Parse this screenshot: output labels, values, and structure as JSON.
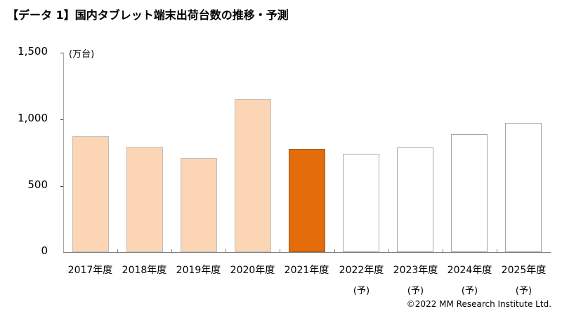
{
  "title": "【データ 1】国内タブレット端末出荷台数の推移・予測",
  "unit_label": "(万台)",
  "copyright": "©2022  MM Research Institute Ltd.",
  "colors": {
    "actual": "#FCD5B5",
    "actual_border": "#BFBFBF",
    "highlight": "#E46C0A",
    "forecast": "#FFFFFF",
    "forecast_border": "#A6A6A6"
  },
  "y_ticks": [
    "1,500",
    "1,000",
    "500",
    "0"
  ],
  "x_labels": [
    {
      "year": "2017年度",
      "sub": ""
    },
    {
      "year": "2018年度",
      "sub": ""
    },
    {
      "year": "2019年度",
      "sub": ""
    },
    {
      "year": "2020年度",
      "sub": ""
    },
    {
      "year": "2021年度",
      "sub": ""
    },
    {
      "year": "2022年度",
      "sub": "(予)"
    },
    {
      "year": "2023年度",
      "sub": "(予)"
    },
    {
      "year": "2024年度",
      "sub": "(予)"
    },
    {
      "year": "2025年度",
      "sub": "(予)"
    }
  ],
  "chart_data": {
    "type": "bar",
    "title": "【データ 1】国内タブレット端末出荷台数の推移・予測",
    "xlabel": "",
    "ylabel": "(万台)",
    "ylim": [
      0,
      1500
    ],
    "yticks": [
      0,
      500,
      1000,
      1500
    ],
    "grid": false,
    "legend": "none",
    "categories": [
      "2017年度",
      "2018年度",
      "2019年度",
      "2020年度",
      "2021年度",
      "2022年度(予)",
      "2023年度(予)",
      "2024年度(予)",
      "2025年度(予)"
    ],
    "values": [
      868,
      789,
      705,
      1147,
      772,
      737,
      786,
      886,
      967
    ],
    "bar_styles": [
      "actual",
      "actual",
      "actual",
      "actual",
      "highlight",
      "forecast",
      "forecast",
      "forecast",
      "forecast"
    ],
    "annotations": [
      "©2022  MM Research Institute Ltd."
    ]
  }
}
